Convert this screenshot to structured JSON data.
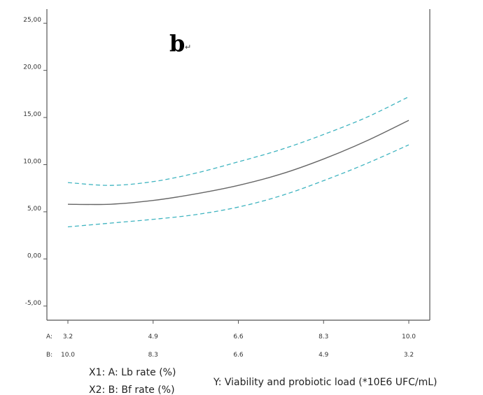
{
  "chart_data": {
    "type": "line",
    "panel_label": "b",
    "panel_mark": "↵",
    "y_ticks": [
      "25,00",
      "20,00",
      "15,00",
      "10,00",
      "5,00",
      "0,00",
      "-5,00"
    ],
    "y_tick_values": [
      25,
      20,
      15,
      10,
      5,
      0,
      -5
    ],
    "ylim": [
      -6.5,
      26.5
    ],
    "x_axis_rows": [
      {
        "label": "A:",
        "ticks": [
          "3.2",
          "4.9",
          "6.6",
          "8.3",
          "10.0"
        ]
      },
      {
        "label": "B:",
        "ticks": [
          "10.0",
          "8.3",
          "6.6",
          "4.9",
          "3.2"
        ]
      }
    ],
    "x": [
      3.2,
      4.05,
      4.9,
      5.75,
      6.6,
      7.45,
      8.3,
      9.15,
      10.0
    ],
    "series": [
      {
        "role": "prediction",
        "color": "#666666",
        "dash": "none",
        "values": [
          5.8,
          5.8,
          6.2,
          6.9,
          7.8,
          9.0,
          10.6,
          12.5,
          14.7
        ]
      },
      {
        "role": "upper-ci",
        "color": "#3fb4c0",
        "dash": "6,4",
        "values": [
          8.1,
          7.8,
          8.2,
          9.1,
          10.3,
          11.6,
          13.2,
          15.0,
          17.2
        ]
      },
      {
        "role": "lower-ci",
        "color": "#3fb4c0",
        "dash": "6,4",
        "values": [
          3.4,
          3.8,
          4.2,
          4.7,
          5.5,
          6.7,
          8.3,
          10.1,
          12.1
        ]
      }
    ],
    "xlabel_1": "X1: A: Lb rate (%)",
    "xlabel_2": "X2: B: Bf rate (%)",
    "ylabel": "Y: Viability and probiotic load  (*10E6 UFC/mL)",
    "grid": false
  }
}
